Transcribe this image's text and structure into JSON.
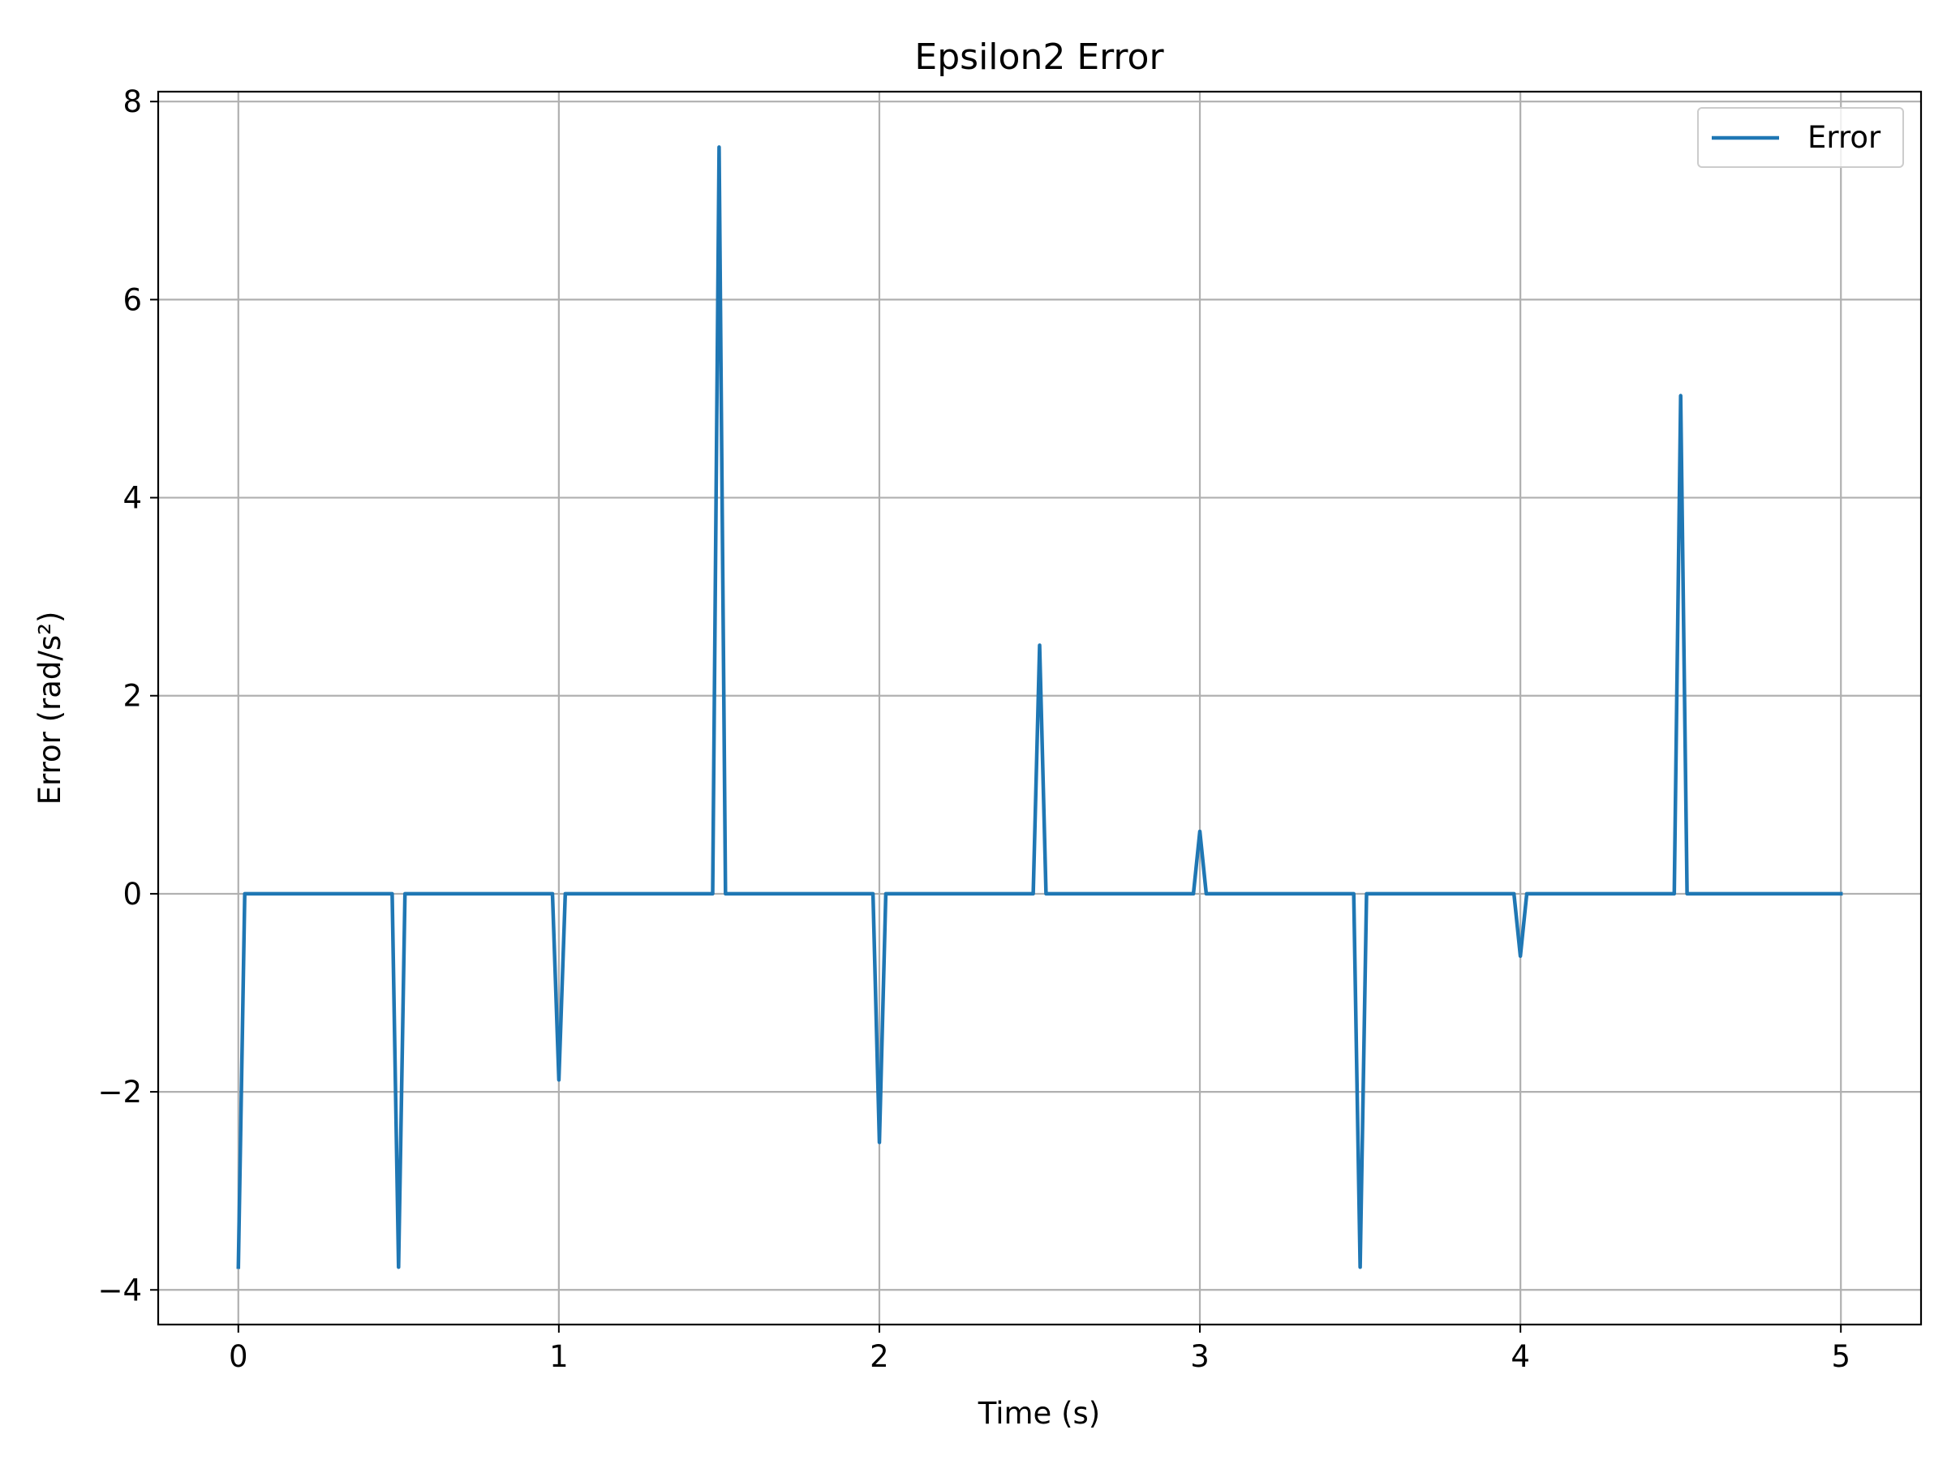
{
  "chart_data": {
    "type": "line",
    "title": "Epsilon2 Error",
    "xlabel": "Time (s)",
    "ylabel": "Error (rad/s²)",
    "xlim": [
      -0.25,
      5.25
    ],
    "ylim": [
      -4.35,
      8.1
    ],
    "xticks": [
      0,
      1,
      2,
      3,
      4,
      5
    ],
    "xtick_labels": [
      "0",
      "1",
      "2",
      "3",
      "4",
      "5"
    ],
    "yticks": [
      -4,
      -2,
      0,
      2,
      4,
      6,
      8
    ],
    "ytick_labels": [
      "−4",
      "−2",
      "0",
      "2",
      "4",
      "6",
      "8"
    ],
    "grid": true,
    "legend_position": "top-right",
    "series": [
      {
        "name": "Error",
        "color": "#1f77b4",
        "x": [
          0.0,
          0.02,
          0.48,
          0.5,
          0.52,
          0.98,
          1.0,
          1.02,
          1.48,
          1.5,
          1.52,
          1.98,
          2.0,
          2.02,
          2.48,
          2.5,
          2.52,
          2.98,
          3.0,
          3.02,
          3.48,
          3.5,
          3.52,
          3.98,
          4.0,
          4.02,
          4.48,
          4.5,
          4.52,
          5.0
        ],
        "y": [
          -3.77,
          0,
          0,
          -3.77,
          0,
          0,
          -1.88,
          0,
          0,
          7.54,
          0,
          0,
          -2.51,
          0,
          0,
          2.51,
          0,
          0,
          0.63,
          0,
          0,
          -3.77,
          0,
          0,
          -0.63,
          0,
          0,
          5.03,
          0,
          0
        ]
      }
    ]
  }
}
